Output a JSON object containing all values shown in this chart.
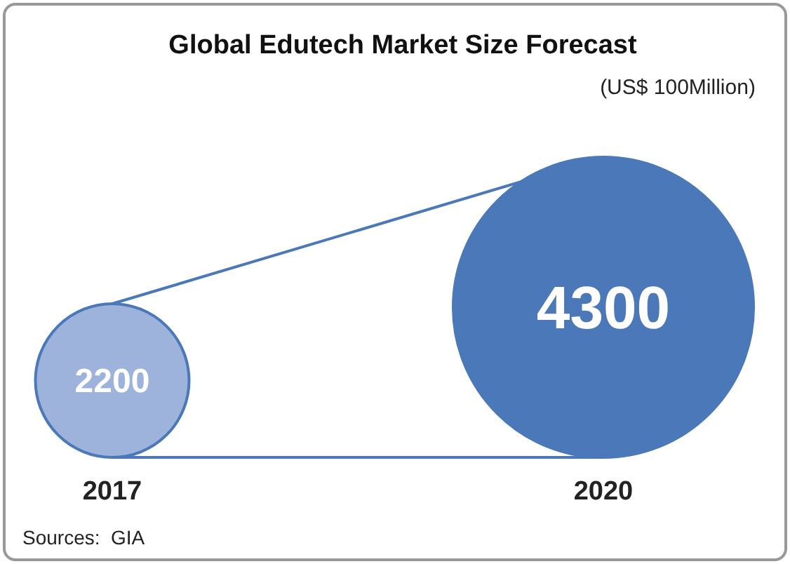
{
  "chart_data": {
    "type": "other",
    "title": "Global Edutech Market Size Forecast",
    "subtitle": "(US$ 100Million)",
    "categories": [
      "2017",
      "2020"
    ],
    "values": [
      2200,
      4300
    ],
    "colors": [
      "#9db3db",
      "#4a78b8"
    ],
    "data_labels": true,
    "annotations": [
      "Sources:  GIA"
    ]
  }
}
